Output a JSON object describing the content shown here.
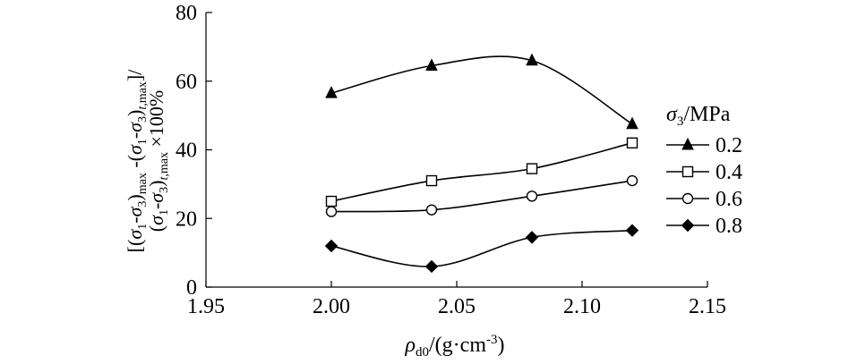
{
  "chart_data": {
    "type": "line",
    "x": [
      2.0,
      2.04,
      2.08,
      2.12
    ],
    "xlim": [
      1.95,
      2.15
    ],
    "ylim": [
      0,
      80
    ],
    "x_ticks": [
      "1.95",
      "2.00",
      "2.05",
      "2.10",
      "2.15"
    ],
    "x_tick_values": [
      1.95,
      2.0,
      2.05,
      2.1,
      2.15
    ],
    "y_ticks": [
      "0",
      "20",
      "40",
      "60",
      "80"
    ],
    "y_tick_values": [
      0,
      20,
      40,
      60,
      80
    ],
    "xlabel": {
      "rho": "ρ",
      "sub": "d0",
      "unit": "/(g·cm",
      "sup": "-3",
      "close": ")"
    },
    "ylabel": {
      "line1": "[(σ1-σ3)max -(σ1-σ3)t,max]/",
      "line2": "(σ1-σ3)t,max ×100%"
    },
    "legend": {
      "title": "σ3/MPa",
      "position": "right"
    },
    "grid": false,
    "series": [
      {
        "name": "0.2",
        "marker": "triangle",
        "values": [
          56.5,
          64.5,
          66,
          47.5
        ]
      },
      {
        "name": "0.4",
        "marker": "square",
        "values": [
          25,
          31,
          34.5,
          42
        ]
      },
      {
        "name": "0.6",
        "marker": "circle",
        "values": [
          22,
          22.5,
          26.5,
          31
        ]
      },
      {
        "name": "0.8",
        "marker": "diamond",
        "values": [
          12,
          6,
          14.5,
          16.5
        ]
      }
    ]
  }
}
